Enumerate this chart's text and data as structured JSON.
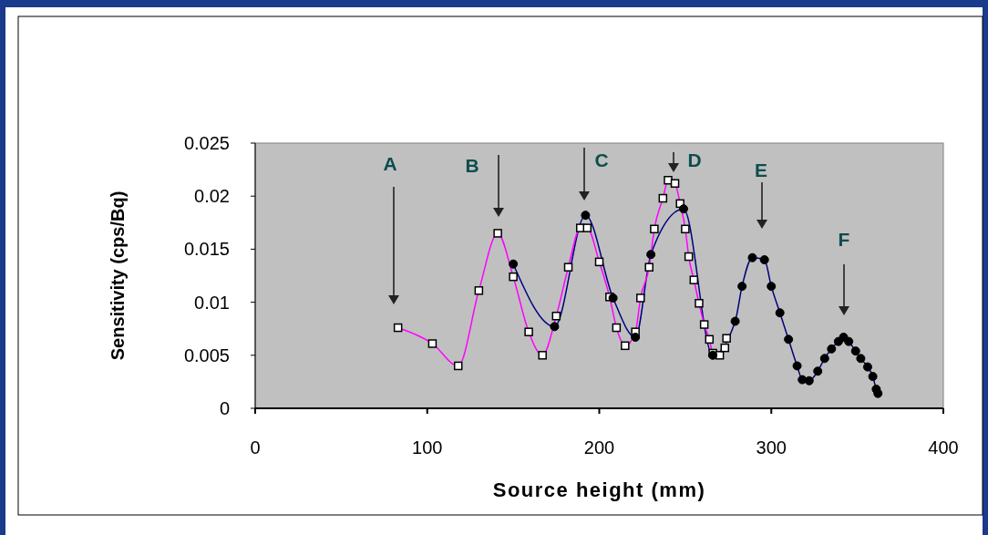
{
  "chart_data": {
    "type": "line",
    "xlabel": "Source height (mm)",
    "ylabel": "Sensitivity (cps/Bq)",
    "xlim": [
      0,
      400
    ],
    "xticks": [
      0,
      100,
      200,
      300,
      400
    ],
    "ylim": [
      0,
      0.025
    ],
    "yticks": [
      0,
      0.005,
      0.01,
      0.015,
      0.02,
      0.025
    ],
    "grid": false,
    "series": [
      {
        "color": "#ff00ff",
        "marker": "square",
        "x": [
          83,
          103,
          118,
          130,
          141,
          150,
          159,
          167,
          175,
          182,
          189,
          193,
          200,
          206,
          210,
          215,
          221,
          224,
          229,
          232,
          237,
          240,
          244,
          247,
          250,
          252,
          255,
          258,
          261,
          264,
          266,
          270,
          273,
          274
        ],
        "values": [
          0.0076,
          0.0061,
          0.004,
          0.0111,
          0.0165,
          0.0124,
          0.0072,
          0.005,
          0.0087,
          0.0133,
          0.017,
          0.017,
          0.0138,
          0.0105,
          0.0076,
          0.0059,
          0.0072,
          0.0104,
          0.0133,
          0.0169,
          0.0198,
          0.0215,
          0.0212,
          0.0193,
          0.0169,
          0.0143,
          0.0121,
          0.0099,
          0.0079,
          0.0065,
          0.0052,
          0.005,
          0.0057,
          0.0066
        ]
      },
      {
        "color": "#000080",
        "marker": "circle",
        "x": [
          150,
          174,
          192,
          208,
          221,
          230,
          249,
          266,
          279,
          283,
          289,
          296,
          300,
          305,
          310,
          315,
          318,
          322,
          327,
          331,
          335,
          339,
          342,
          345,
          349,
          352,
          356,
          359,
          361,
          362
        ],
        "values": [
          0.0136,
          0.0077,
          0.0182,
          0.0104,
          0.0067,
          0.0145,
          0.0188,
          0.005,
          0.0082,
          0.0115,
          0.0142,
          0.014,
          0.0115,
          0.009,
          0.0065,
          0.004,
          0.0027,
          0.0026,
          0.0035,
          0.0047,
          0.0056,
          0.0063,
          0.0067,
          0.0063,
          0.0054,
          0.0047,
          0.0039,
          0.003,
          0.0018,
          0.0014
        ]
      }
    ],
    "annotations": [
      "A",
      "B",
      "C",
      "D",
      "E",
      "F"
    ]
  }
}
